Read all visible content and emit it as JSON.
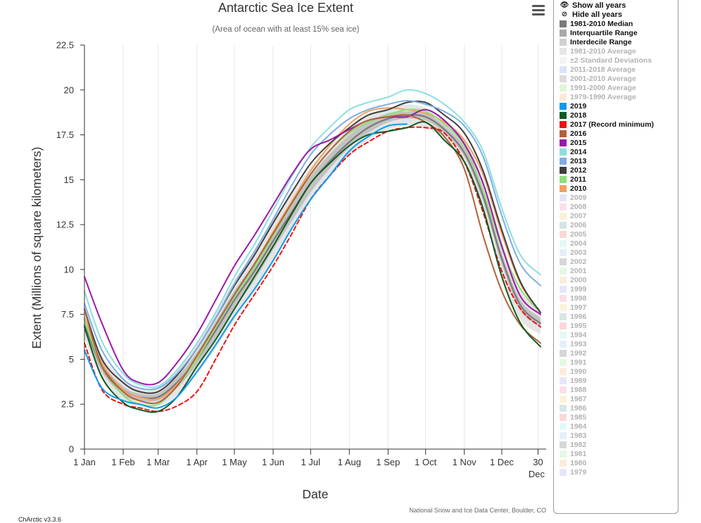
{
  "credit": {
    "version": "ChArctic v3.3.6",
    "source": "National Snow and Ice Data Center, Boulder, CO"
  },
  "legend_controls": {
    "show_all": "Show all years",
    "hide_all": "Hide all years"
  },
  "legend": [
    {
      "label": "1981-2010 Median",
      "color": "#7a7a7a",
      "on": true
    },
    {
      "label": "Interquartile Range",
      "color": "#a8a8a8",
      "on": true
    },
    {
      "label": "Interdecile Range",
      "color": "#d0d0d0",
      "on": true
    },
    {
      "label": "1981-2010 Average",
      "color": "#c8c8c8",
      "on": false
    },
    {
      "label": "±2 Standard Deviations",
      "color": "#e6e6e6",
      "on": false
    },
    {
      "label": "2011-2018 Average",
      "color": "#a9c8ef",
      "on": false
    },
    {
      "label": "2001-2010 Average",
      "color": "#b0b0b0",
      "on": false
    },
    {
      "label": "1991-2000 Average",
      "color": "#b6eaa6",
      "on": false
    },
    {
      "label": "1979-1990 Average",
      "color": "#f8cfa0",
      "on": false
    },
    {
      "label": "2019",
      "color": "#0a9bef",
      "on": true
    },
    {
      "label": "2018",
      "color": "#0e5b22",
      "on": true
    },
    {
      "label": "2017 (Record minimum)",
      "color": "#ee1111",
      "on": true
    },
    {
      "label": "2016",
      "color": "#b0623a",
      "on": true
    },
    {
      "label": "2015",
      "color": "#9e18a8",
      "on": true
    },
    {
      "label": "2014",
      "color": "#8ce0dc",
      "on": true
    },
    {
      "label": "2013",
      "color": "#7faee4",
      "on": true
    },
    {
      "label": "2012",
      "color": "#3f3f3f",
      "on": true
    },
    {
      "label": "2011",
      "color": "#8ee07a",
      "on": true
    },
    {
      "label": "2010",
      "color": "#f2a060",
      "on": true
    },
    {
      "label": "2009",
      "color": "#c9c0f0",
      "on": false
    },
    {
      "label": "2008",
      "color": "#f4b8cc",
      "on": false
    },
    {
      "label": "2007",
      "color": "#f4e0a0",
      "on": false
    },
    {
      "label": "2006",
      "color": "#9cc8c0",
      "on": false
    },
    {
      "label": "2005",
      "color": "#f6a8a8",
      "on": false
    },
    {
      "label": "2004",
      "color": "#c4f2f0",
      "on": false
    },
    {
      "label": "2003",
      "color": "#c4dcf8",
      "on": false
    },
    {
      "label": "2002",
      "color": "#a6a6a6",
      "on": false
    },
    {
      "label": "2001",
      "color": "#c4f2c0",
      "on": false
    },
    {
      "label": "2000",
      "color": "#f8d4b0",
      "on": false
    },
    {
      "label": "1999",
      "color": "#c8c8f8",
      "on": false
    },
    {
      "label": "1998",
      "color": "#f4b8cc",
      "on": false
    },
    {
      "label": "1997",
      "color": "#f4e4a8",
      "on": false
    },
    {
      "label": "1996",
      "color": "#a8ccc4",
      "on": false
    },
    {
      "label": "1995",
      "color": "#f6a8a8",
      "on": false
    },
    {
      "label": "1994",
      "color": "#c4f2f0",
      "on": false
    },
    {
      "label": "1993",
      "color": "#c4dcf8",
      "on": false
    },
    {
      "label": "1992",
      "color": "#a6a6a6",
      "on": false
    },
    {
      "label": "1991",
      "color": "#c4f2c0",
      "on": false
    },
    {
      "label": "1990",
      "color": "#f8d4b0",
      "on": false
    },
    {
      "label": "1989",
      "color": "#c8c8f8",
      "on": false
    },
    {
      "label": "1988",
      "color": "#f4b8cc",
      "on": false
    },
    {
      "label": "1987",
      "color": "#f4e4a8",
      "on": false
    },
    {
      "label": "1986",
      "color": "#a8ccc4",
      "on": false
    },
    {
      "label": "1985",
      "color": "#f6a8a8",
      "on": false
    },
    {
      "label": "1984",
      "color": "#c4f2f0",
      "on": false
    },
    {
      "label": "1983",
      "color": "#c4dcf8",
      "on": false
    },
    {
      "label": "1982",
      "color": "#a6a6a6",
      "on": false
    },
    {
      "label": "1981",
      "color": "#c4f2c0",
      "on": false
    },
    {
      "label": "1980",
      "color": "#f8d4b0",
      "on": false
    },
    {
      "label": "1979",
      "color": "#c8c8f8",
      "on": false
    }
  ],
  "chart_data": {
    "type": "line",
    "title": "Antarctic Sea Ice Extent",
    "subtitle": "(Area of ocean with at least 15% sea ice)",
    "xlabel": "Date",
    "ylabel": "Extent (Millions of square kilometers)",
    "xlim": [
      1,
      366
    ],
    "ylim": [
      0,
      22.5
    ],
    "yticks": [
      0,
      2.5,
      5,
      7.5,
      10,
      12.5,
      15,
      17.5,
      20,
      22.5
    ],
    "ytick_labels": [
      "0",
      "2.5",
      "5",
      "7.5",
      "10",
      "12.5",
      "15",
      "17.5",
      "20",
      "22.5"
    ],
    "xticks": [
      {
        "day": 1,
        "label": "1 Jan"
      },
      {
        "day": 32,
        "label": "1 Feb"
      },
      {
        "day": 60,
        "label": "1 Mar"
      },
      {
        "day": 91,
        "label": "1 Apr"
      },
      {
        "day": 121,
        "label": "1 May"
      },
      {
        "day": 152,
        "label": "1 Jun"
      },
      {
        "day": 182,
        "label": "1 Jul"
      },
      {
        "day": 213,
        "label": "1 Aug"
      },
      {
        "day": 244,
        "label": "1 Sep"
      },
      {
        "day": 274,
        "label": "1 Oct"
      },
      {
        "day": 305,
        "label": "1 Nov"
      },
      {
        "day": 335,
        "label": "1 Dec"
      },
      {
        "day": 364,
        "label": "30"
      }
    ],
    "xtick_sublabel": {
      "day": 364,
      "label": "Dec"
    },
    "grid": "vertical",
    "legend_position": "right",
    "x_day": [
      1,
      15,
      32,
      45,
      60,
      75,
      91,
      106,
      121,
      137,
      152,
      167,
      182,
      197,
      213,
      228,
      244,
      259,
      274,
      289,
      305,
      320,
      335,
      350,
      366
    ],
    "bands": [
      {
        "name": "Interdecile Range",
        "color": "#dcdcdc",
        "lower": [
          6.2,
          3.9,
          2.7,
          2.4,
          2.4,
          3.0,
          4.2,
          5.6,
          7.2,
          8.9,
          10.5,
          12.2,
          13.8,
          15.1,
          16.3,
          17.2,
          17.8,
          18.0,
          17.9,
          17.2,
          15.8,
          13.2,
          9.6,
          7.2,
          6.4
        ],
        "upper": [
          7.6,
          5.2,
          3.9,
          3.4,
          3.4,
          4.4,
          5.9,
          7.7,
          9.4,
          11.0,
          12.7,
          14.3,
          15.7,
          16.9,
          17.9,
          18.6,
          19.0,
          19.2,
          19.0,
          18.4,
          17.3,
          15.0,
          11.6,
          8.8,
          7.8
        ]
      },
      {
        "name": "Interquartile Range",
        "color": "#b6b6b6",
        "lower": [
          6.6,
          4.3,
          3.0,
          2.7,
          2.7,
          3.4,
          4.7,
          6.2,
          7.8,
          9.4,
          11.1,
          12.7,
          14.3,
          15.6,
          16.8,
          17.6,
          18.2,
          18.4,
          18.3,
          17.6,
          16.3,
          13.8,
          10.3,
          7.7,
          6.8
        ],
        "upper": [
          7.2,
          4.8,
          3.5,
          3.1,
          3.1,
          4.0,
          5.4,
          7.1,
          8.8,
          10.4,
          12.1,
          13.7,
          15.2,
          16.4,
          17.5,
          18.2,
          18.7,
          18.8,
          18.7,
          18.0,
          16.8,
          14.4,
          10.9,
          8.3,
          7.3
        ]
      }
    ],
    "series": [
      {
        "name": "1981-2010 Median",
        "color": "#7a7a7a",
        "width": 2.2,
        "dash": "",
        "values": [
          6.9,
          4.6,
          3.3,
          2.9,
          2.9,
          3.7,
          5.0,
          6.6,
          8.3,
          9.9,
          11.6,
          13.2,
          14.8,
          16.0,
          17.1,
          17.9,
          18.4,
          18.6,
          18.5,
          17.8,
          16.5,
          14.1,
          10.6,
          8.0,
          7.0
        ]
      },
      {
        "name": "2019",
        "color": "#0a9bef",
        "width": 2,
        "dash": "",
        "values": [
          5.5,
          3.4,
          2.7,
          2.5,
          2.3,
          2.9,
          4.3,
          5.8,
          7.4,
          8.9,
          10.5,
          12.3,
          13.9,
          15.2,
          16.6,
          17.4,
          18.0,
          18.1
        ]
      },
      {
        "name": "2018",
        "color": "#0e5b22",
        "width": 2,
        "dash": "",
        "values": [
          6.8,
          4.0,
          2.6,
          2.2,
          2.1,
          2.9,
          4.6,
          6.1,
          7.8,
          9.6,
          11.3,
          13.1,
          14.8,
          15.9,
          16.9,
          17.5,
          17.7,
          17.9,
          18.2,
          17.2,
          16.0,
          13.4,
          9.6,
          7.0,
          5.7
        ]
      },
      {
        "name": "2017 (Record minimum)",
        "color": "#ee1111",
        "width": 2,
        "dash": "6,4",
        "values": [
          5.9,
          3.3,
          2.5,
          2.3,
          2.1,
          2.4,
          3.2,
          5.0,
          6.9,
          8.6,
          10.2,
          12.0,
          13.9,
          15.2,
          16.4,
          17.1,
          17.7,
          17.9,
          17.9,
          17.6,
          16.0,
          13.2,
          9.9,
          7.8,
          6.8
        ]
      },
      {
        "name": "2016",
        "color": "#b0623a",
        "width": 2,
        "dash": "",
        "values": [
          7.8,
          4.6,
          3.2,
          2.7,
          2.6,
          3.5,
          5.2,
          6.9,
          8.6,
          10.3,
          12.0,
          13.7,
          15.3,
          16.6,
          17.7,
          18.3,
          18.5,
          18.6,
          18.2,
          17.4,
          15.6,
          11.9,
          8.8,
          6.9,
          5.9
        ]
      },
      {
        "name": "2015",
        "color": "#9e18a8",
        "width": 2,
        "dash": "",
        "values": [
          9.6,
          7.0,
          4.4,
          3.7,
          3.7,
          4.8,
          6.4,
          8.3,
          10.2,
          11.9,
          13.6,
          15.3,
          16.7,
          17.2,
          17.8,
          18.3,
          18.5,
          18.5,
          18.9,
          18.3,
          17.0,
          14.8,
          11.3,
          8.5,
          7.5
        ]
      },
      {
        "name": "2014",
        "color": "#8ce0dc",
        "width": 2,
        "dash": "",
        "values": [
          8.8,
          6.0,
          4.2,
          3.6,
          3.5,
          4.4,
          5.9,
          7.6,
          9.6,
          11.4,
          13.3,
          15.2,
          16.8,
          17.9,
          18.9,
          19.3,
          19.6,
          20.0,
          19.8,
          19.2,
          18.2,
          16.6,
          13.4,
          10.8,
          9.7
        ]
      },
      {
        "name": "2013",
        "color": "#7faee4",
        "width": 2,
        "dash": "",
        "values": [
          8.1,
          5.5,
          3.9,
          3.4,
          3.4,
          4.2,
          5.6,
          7.3,
          9.2,
          11.0,
          12.8,
          14.7,
          16.4,
          17.5,
          18.4,
          18.9,
          19.2,
          19.4,
          19.2,
          18.8,
          18.0,
          16.3,
          13.0,
          10.3,
          9.1
        ]
      },
      {
        "name": "2012",
        "color": "#3f3f3f",
        "width": 2,
        "dash": "",
        "values": [
          7.8,
          5.0,
          3.7,
          3.2,
          3.2,
          4.1,
          5.6,
          7.3,
          9.1,
          10.8,
          12.6,
          14.3,
          15.9,
          17.0,
          17.9,
          18.6,
          18.9,
          19.3,
          19.3,
          18.6,
          17.6,
          15.5,
          12.2,
          9.3,
          7.6
        ]
      },
      {
        "name": "2011",
        "color": "#8ee07a",
        "width": 2,
        "dash": "",
        "values": [
          7.2,
          4.6,
          3.0,
          2.5,
          2.5,
          3.5,
          5.0,
          6.8,
          8.5,
          10.1,
          11.9,
          13.7,
          15.3,
          16.6,
          17.6,
          18.2,
          18.6,
          18.9,
          18.8,
          18.1,
          16.9,
          14.4,
          11.2,
          8.9,
          7.6
        ]
      },
      {
        "name": "2010",
        "color": "#f2a060",
        "width": 2,
        "dash": "",
        "values": [
          7.3,
          4.8,
          3.3,
          2.9,
          2.8,
          3.6,
          5.1,
          6.8,
          8.6,
          10.3,
          12.1,
          13.8,
          15.5,
          16.9,
          18.1,
          18.8,
          19.0,
          18.9,
          18.7,
          18.2,
          17.2,
          15.3,
          12.0,
          9.2,
          7.6
        ]
      }
    ]
  }
}
